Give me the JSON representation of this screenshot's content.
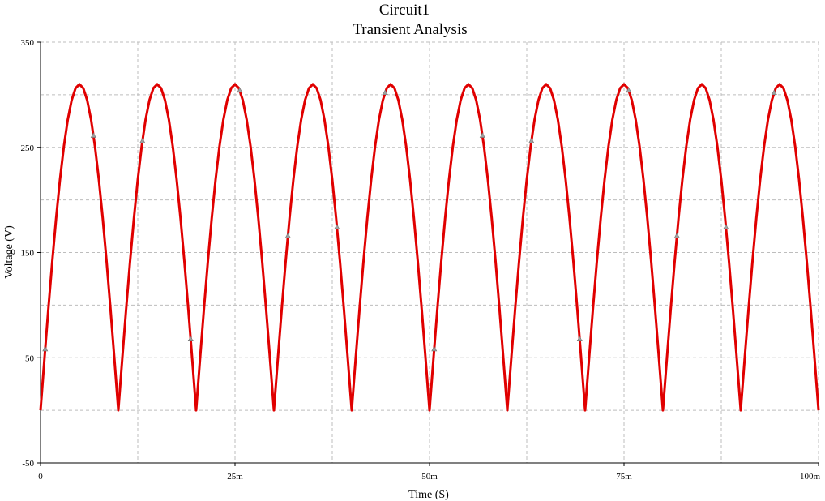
{
  "chart_data": {
    "type": "line",
    "title": "Circuit1",
    "subtitle": "Transient Analysis",
    "xlabel": "Time (S)",
    "ylabel": "Voltage (V)",
    "x_ticks": [
      "0",
      "25m",
      "50m",
      "75m",
      "100m"
    ],
    "x_tick_values": [
      0,
      0.025,
      0.05,
      0.075,
      0.1
    ],
    "y_ticks": [
      "350",
      "250",
      "150",
      "50",
      "-50"
    ],
    "y_tick_values": [
      350,
      250,
      150,
      50,
      -50
    ],
    "xlim": [
      0,
      0.1
    ],
    "ylim": [
      -50,
      350
    ],
    "grid": true,
    "grid_divisions": {
      "x": 8,
      "y": 8
    },
    "series": [
      {
        "color": "#e00000",
        "marker": "triangle",
        "description": "full-wave rectified sine, peak ~310 V, period 10 ms",
        "x": [
          0,
          0.0005,
          0.001,
          0.0015,
          0.002,
          0.0025,
          0.003,
          0.0035,
          0.004,
          0.0045,
          0.005,
          0.0055,
          0.006,
          0.0065,
          0.007,
          0.0075,
          0.008,
          0.0085,
          0.009,
          0.0095,
          0.01,
          0.0105,
          0.011,
          0.0115,
          0.012,
          0.0125,
          0.013,
          0.0135,
          0.014,
          0.0145,
          0.015,
          0.0155,
          0.016,
          0.0165,
          0.017,
          0.0175,
          0.018,
          0.0185,
          0.019,
          0.0195,
          0.02,
          0.0205,
          0.021,
          0.0215,
          0.022,
          0.0225,
          0.023,
          0.0235,
          0.024,
          0.0245,
          0.025,
          0.0255,
          0.026,
          0.0265,
          0.027,
          0.0275,
          0.028,
          0.0285,
          0.029,
          0.0295,
          0.03,
          0.0305,
          0.031,
          0.0315,
          0.032,
          0.0325,
          0.033,
          0.0335,
          0.034,
          0.0345,
          0.035,
          0.0355,
          0.036,
          0.0365,
          0.037,
          0.0375,
          0.038,
          0.0385,
          0.039,
          0.0395,
          0.04,
          0.0405,
          0.041,
          0.0415,
          0.042,
          0.0425,
          0.043,
          0.0435,
          0.044,
          0.0445,
          0.045,
          0.0455,
          0.046,
          0.0465,
          0.047,
          0.0475,
          0.048,
          0.0485,
          0.049,
          0.0495,
          0.05,
          0.0505,
          0.051,
          0.0515,
          0.052,
          0.0525,
          0.053,
          0.0535,
          0.054,
          0.0545,
          0.055,
          0.0555,
          0.056,
          0.0565,
          0.057,
          0.0575,
          0.058,
          0.0585,
          0.059,
          0.0595,
          0.06,
          0.0605,
          0.061,
          0.0615,
          0.062,
          0.0625,
          0.063,
          0.0635,
          0.064,
          0.0645,
          0.065,
          0.0655,
          0.066,
          0.0665,
          0.067,
          0.0675,
          0.068,
          0.0685,
          0.069,
          0.0695,
          0.07,
          0.0705,
          0.071,
          0.0715,
          0.072,
          0.0725,
          0.073,
          0.0735,
          0.074,
          0.0745,
          0.075,
          0.0755,
          0.076,
          0.0765,
          0.077,
          0.0775,
          0.078,
          0.0785,
          0.079,
          0.0795,
          0.08,
          0.0805,
          0.081,
          0.0815,
          0.082,
          0.0825,
          0.083,
          0.0835,
          0.084,
          0.0845,
          0.085,
          0.0855,
          0.086,
          0.0865,
          0.087,
          0.0875,
          0.088,
          0.0885,
          0.089,
          0.0895,
          0.09,
          0.0905,
          0.091,
          0.0915,
          0.092,
          0.0925,
          0.093,
          0.0935,
          0.094,
          0.0945,
          0.095,
          0.0955,
          0.096,
          0.0965,
          0.097,
          0.0975,
          0.098,
          0.0985,
          0.099,
          0.0995,
          0.1
        ],
        "y": [
          0,
          48.5,
          95.8,
          140.7,
          182.2,
          219.2,
          250.8,
          276.2,
          294.8,
          306.2,
          310,
          306.2,
          294.8,
          276.2,
          250.8,
          219.2,
          182.2,
          140.7,
          95.8,
          48.5,
          0,
          48.5,
          95.8,
          140.7,
          182.2,
          219.2,
          250.8,
          276.2,
          294.8,
          306.2,
          310,
          306.2,
          294.8,
          276.2,
          250.8,
          219.2,
          182.2,
          140.7,
          95.8,
          48.5,
          0,
          48.5,
          95.8,
          140.7,
          182.2,
          219.2,
          250.8,
          276.2,
          294.8,
          306.2,
          310,
          306.2,
          294.8,
          276.2,
          250.8,
          219.2,
          182.2,
          140.7,
          95.8,
          48.5,
          0,
          48.5,
          95.8,
          140.7,
          182.2,
          219.2,
          250.8,
          276.2,
          294.8,
          306.2,
          310,
          306.2,
          294.8,
          276.2,
          250.8,
          219.2,
          182.2,
          140.7,
          95.8,
          48.5,
          0,
          48.5,
          95.8,
          140.7,
          182.2,
          219.2,
          250.8,
          276.2,
          294.8,
          306.2,
          310,
          306.2,
          294.8,
          276.2,
          250.8,
          219.2,
          182.2,
          140.7,
          95.8,
          48.5,
          0,
          48.5,
          95.8,
          140.7,
          182.2,
          219.2,
          250.8,
          276.2,
          294.8,
          306.2,
          310,
          306.2,
          294.8,
          276.2,
          250.8,
          219.2,
          182.2,
          140.7,
          95.8,
          48.5,
          0,
          48.5,
          95.8,
          140.7,
          182.2,
          219.2,
          250.8,
          276.2,
          294.8,
          306.2,
          310,
          306.2,
          294.8,
          276.2,
          250.8,
          219.2,
          182.2,
          140.7,
          95.8,
          48.5,
          0,
          48.5,
          95.8,
          140.7,
          182.2,
          219.2,
          250.8,
          276.2,
          294.8,
          306.2,
          310,
          306.2,
          294.8,
          276.2,
          250.8,
          219.2,
          182.2,
          140.7,
          95.8,
          48.5,
          0,
          48.5,
          95.8,
          140.7,
          182.2,
          219.2,
          250.8,
          276.2,
          294.8,
          306.2,
          310,
          306.2,
          294.8,
          276.2,
          250.8,
          219.2,
          182.2,
          140.7,
          95.8,
          48.5,
          0,
          48.5,
          95.8,
          140.7,
          182.2,
          219.2,
          250.8,
          276.2,
          294.8,
          306.2,
          310,
          306.2,
          294.8,
          276.2,
          250.8,
          219.2,
          182.2,
          140.7,
          95.8,
          48.5,
          0
        ],
        "marker_x": [
          0.0006,
          0.0068,
          0.0131,
          0.0193,
          0.0256,
          0.0318,
          0.0381,
          0.0443,
          0.0506,
          0.0568,
          0.0631,
          0.0693,
          0.0756,
          0.0818,
          0.0881,
          0.0943
        ]
      }
    ]
  }
}
